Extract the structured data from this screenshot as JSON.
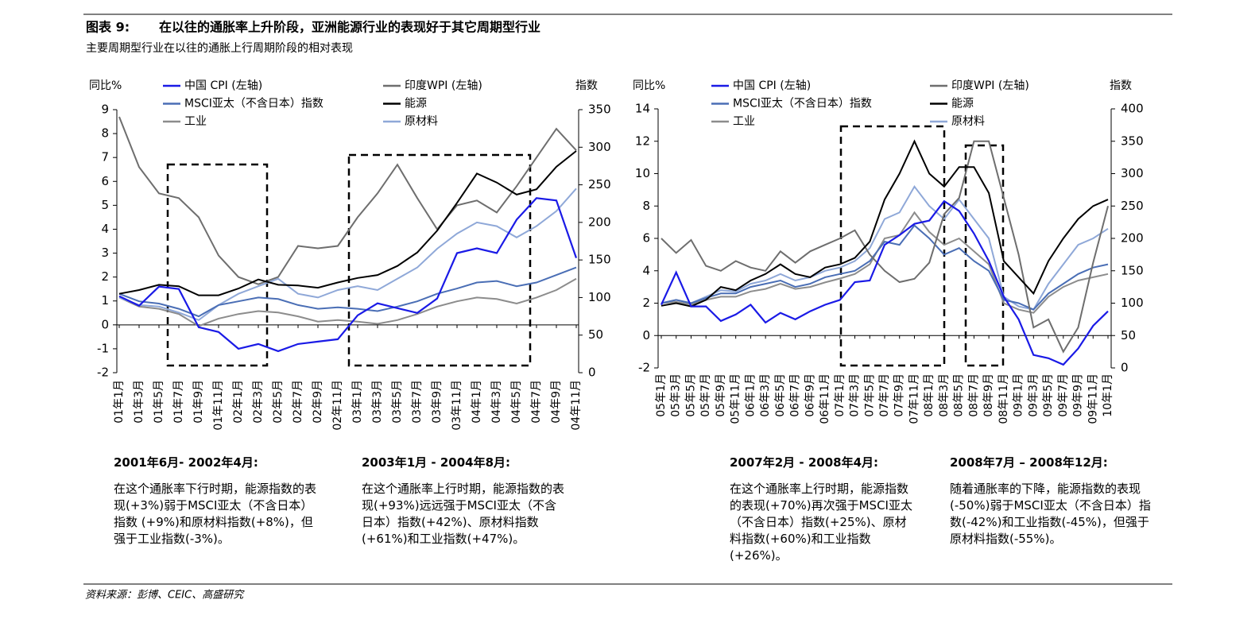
{
  "header": {
    "label": "图表 9:",
    "title": "在以往的通胀率上升阶段，亚洲能源行业的表现好于其它周期型行业",
    "subtitle": "主要周期型行业在以往的通胀上行周期阶段的相对表现"
  },
  "chart_data": [
    {
      "type": "line",
      "y_label": "同比%",
      "y2_label": "指数",
      "categories": [
        "01年1月",
        "01年3月",
        "01年5月",
        "01年7月",
        "01年9月",
        "01年11月",
        "02年1月",
        "02年3月",
        "02年5月",
        "02年7月",
        "02年9月",
        "02年11月",
        "03年1月",
        "03年3月",
        "03年5月",
        "03年7月",
        "03年9月",
        "03年11月",
        "04年1月",
        "04年3月",
        "04年5月",
        "04年7月",
        "04年9月",
        "04年11月"
      ],
      "ylim": [
        -2,
        9
      ],
      "yticks": [
        -2,
        -1,
        0,
        1,
        2,
        3,
        4,
        5,
        6,
        7,
        8,
        9
      ],
      "y2lim": [
        0,
        350
      ],
      "y2ticks": [
        0,
        50,
        100,
        150,
        200,
        250,
        300,
        350
      ],
      "series": [
        {
          "name": "中国 CPI (左轴)",
          "color": "#1a1ae6",
          "values": [
            1.2,
            0.8,
            1.6,
            1.5,
            -0.1,
            -0.3,
            -1.0,
            -0.8,
            -1.1,
            -0.8,
            -0.7,
            -0.6,
            0.4,
            0.9,
            0.7,
            0.5,
            1.1,
            3.0,
            3.2,
            3.0,
            4.4,
            5.3,
            5.2,
            2.8
          ]
        },
        {
          "name": "印度WPI (左轴)",
          "color": "#6e6e6e",
          "values": [
            8.7,
            6.6,
            5.5,
            5.3,
            4.5,
            2.9,
            2.0,
            1.7,
            2.0,
            3.3,
            3.2,
            3.3,
            4.5,
            5.5,
            6.7,
            5.3,
            4.0,
            5.0,
            5.2,
            4.7,
            5.8,
            7.0,
            8.2,
            7.3
          ]
        },
        {
          "name": "MSCI亚太（不含日本）指数",
          "color": "#4a6eb5",
          "axis": "y2",
          "values": [
            105,
            95,
            92,
            85,
            75,
            90,
            95,
            100,
            98,
            90,
            85,
            87,
            85,
            82,
            88,
            95,
            105,
            112,
            120,
            122,
            115,
            120,
            130,
            140
          ]
        },
        {
          "name": "能源",
          "color": "#000000",
          "axis": "y2",
          "values": [
            105,
            110,
            117,
            115,
            103,
            103,
            112,
            124,
            117,
            116,
            113,
            120,
            126,
            130,
            142,
            160,
            189,
            226,
            265,
            253,
            237,
            244,
            274,
            295
          ]
        },
        {
          "name": "工业",
          "color": "#8c8c8c",
          "axis": "y2",
          "values": [
            100,
            88,
            85,
            78,
            62,
            72,
            78,
            82,
            80,
            75,
            68,
            70,
            68,
            65,
            70,
            78,
            88,
            95,
            100,
            98,
            92,
            100,
            110,
            125
          ]
        },
        {
          "name": "原材料",
          "color": "#8fa8d8",
          "axis": "y2",
          "values": [
            100,
            90,
            88,
            80,
            70,
            90,
            105,
            115,
            125,
            105,
            100,
            110,
            115,
            110,
            125,
            140,
            165,
            185,
            200,
            195,
            180,
            195,
            215,
            245
          ]
        }
      ]
    },
    {
      "type": "line",
      "y_label": "同比%",
      "y2_label": "指数",
      "categories": [
        "05年1月",
        "05年3月",
        "05年5月",
        "05年7月",
        "05年9月",
        "05年11月",
        "06年1月",
        "06年3月",
        "06年5月",
        "06年7月",
        "06年9月",
        "06年11月",
        "07年1月",
        "07年3月",
        "07年5月",
        "07年7月",
        "07年9月",
        "07年11月",
        "08年1月",
        "08年3月",
        "08年5月",
        "08年7月",
        "08年9月",
        "08年11月",
        "09年1月",
        "09年3月",
        "09年5月",
        "09年7月",
        "09年9月",
        "09年11月",
        "10年1月"
      ],
      "ylim": [
        -2,
        14
      ],
      "yticks": [
        -2,
        0,
        2,
        4,
        6,
        8,
        10,
        12,
        14
      ],
      "y2lim": [
        0,
        400
      ],
      "y2ticks": [
        0,
        50,
        100,
        150,
        200,
        250,
        300,
        350,
        400
      ],
      "series": [
        {
          "name": "中国 CPI (左轴)",
          "color": "#1a1ae6",
          "values": [
            1.9,
            3.9,
            1.8,
            1.8,
            0.9,
            1.3,
            1.9,
            0.8,
            1.4,
            1.0,
            1.5,
            1.9,
            2.2,
            3.3,
            3.4,
            5.6,
            6.2,
            6.9,
            7.1,
            8.3,
            7.7,
            6.3,
            4.6,
            2.4,
            1.0,
            -1.2,
            -1.4,
            -1.8,
            -0.8,
            0.6,
            1.5
          ]
        },
        {
          "name": "印度WPI (左轴)",
          "color": "#6e6e6e",
          "values": [
            6.0,
            5.1,
            5.9,
            4.3,
            4.0,
            4.6,
            4.2,
            4.0,
            5.2,
            4.5,
            5.2,
            5.6,
            6.0,
            6.5,
            5.0,
            4.0,
            3.3,
            3.5,
            4.5,
            7.5,
            8.5,
            12.0,
            12.0,
            8.5,
            5.0,
            0.5,
            1.0,
            -1.0,
            0.5,
            4.5,
            8.0
          ]
        },
        {
          "name": "MSCI亚太（不含日本）指数",
          "color": "#4a6eb5",
          "axis": "y2",
          "values": [
            100,
            105,
            100,
            108,
            115,
            115,
            125,
            130,
            135,
            125,
            130,
            140,
            145,
            150,
            165,
            195,
            190,
            220,
            200,
            175,
            185,
            165,
            150,
            105,
            100,
            90,
            115,
            130,
            145,
            155,
            160
          ]
        },
        {
          "name": "能源",
          "color": "#000000",
          "axis": "y2",
          "values": [
            96,
            100,
            95,
            105,
            125,
            120,
            135,
            145,
            160,
            145,
            140,
            155,
            160,
            170,
            195,
            260,
            300,
            350,
            300,
            280,
            310,
            310,
            270,
            165,
            140,
            115,
            165,
            200,
            230,
            250,
            260
          ]
        },
        {
          "name": "工业",
          "color": "#8c8c8c",
          "axis": "y2",
          "values": [
            100,
            102,
            98,
            105,
            110,
            110,
            118,
            122,
            130,
            122,
            125,
            132,
            138,
            145,
            160,
            200,
            205,
            240,
            210,
            190,
            200,
            180,
            160,
            100,
            90,
            85,
            110,
            125,
            135,
            140,
            145
          ]
        },
        {
          "name": "原材料",
          "color": "#8fa8d8",
          "axis": "y2",
          "values": [
            100,
            105,
            100,
            110,
            120,
            118,
            130,
            135,
            145,
            135,
            140,
            150,
            155,
            165,
            185,
            230,
            240,
            280,
            250,
            230,
            260,
            230,
            200,
            110,
            95,
            90,
            130,
            160,
            190,
            200,
            215
          ]
        }
      ]
    }
  ],
  "notes": [
    {
      "title": "2001年6月- 2002年4月:",
      "text": "在这个通胀率下行时期，能源指数的表现(+3%)弱于MSCI亚太（不含日本）指数 (+9%)和原材料指数(+8%)，但强于工业指数(-3%)。"
    },
    {
      "title": "2003年1月 - 2004年8月:",
      "text": "在这个通胀率上行时期，能源指数的表现(+93%)远远强于MSCI亚太（不含日本）指数(+42%)、原材料指数(+61%)和工业指数(+47%)。"
    },
    {
      "title": "2007年2月 - 2008年4月:",
      "text": "在这个通胀率上行时期，能源指数的表现(+70%)再次强于MSCI亚太（不含日本）指数(+25%)、原材料指数(+60%)和工业指数 (+26%)。"
    },
    {
      "title": "2008年7月 – 2008年12月:",
      "text": "随着通胀率的下降，能源指数的表现(-50%)弱于MSCI亚太（不含日本）指数(-42%)和工业指数(-45%)，但强于原材料指数(-55%)。"
    }
  ],
  "source": "资料来源：彭博、CEIC、高盛研究"
}
